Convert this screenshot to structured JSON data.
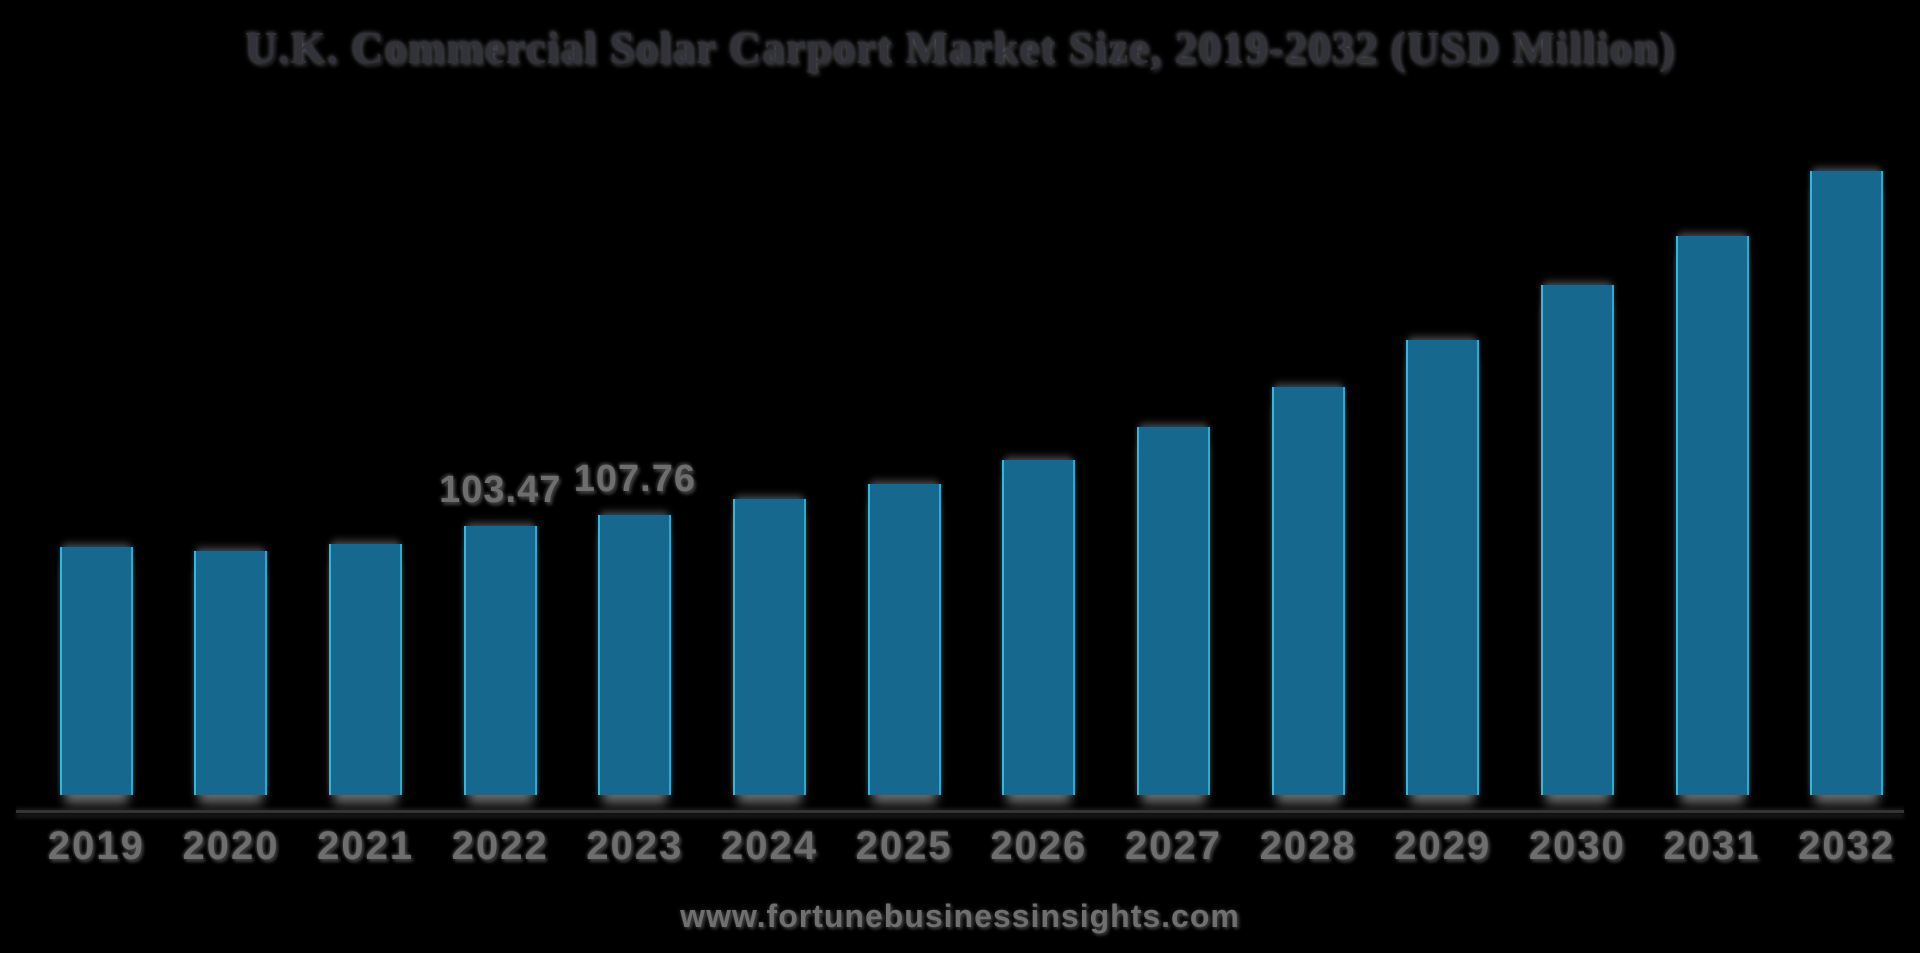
{
  "chart_data": {
    "type": "bar",
    "title": "U.K. Commercial Solar Carport Market Size, 2019-2032 (USD Million)",
    "categories": [
      "2019",
      "2020",
      "2021",
      "2022",
      "2023",
      "2024",
      "2025",
      "2026",
      "2027",
      "2028",
      "2029",
      "2030",
      "2031",
      "2032"
    ],
    "values": [
      95.3,
      93.8,
      96.4,
      103.47,
      107.76,
      113.7,
      119.8,
      129.0,
      141.6,
      156.9,
      174.9,
      196.0,
      215.1,
      240.0
    ],
    "data_labels": [
      "",
      "",
      "",
      "103.47",
      "107.76",
      "",
      "",
      "",
      "",
      "",
      "",
      "",
      "",
      ""
    ],
    "xlabel": "",
    "ylabel": "",
    "ylim": [
      0,
      260
    ],
    "grid": false,
    "legend": false,
    "bar_color": "#17688f",
    "bar_edge_highlight": "#34c6f1",
    "background_color": "#000000",
    "title_color": "#32323b",
    "tick_label_color": "#6e6e6e"
  },
  "footer": {
    "watermark": "www.fortunebusinessinsights.com"
  }
}
